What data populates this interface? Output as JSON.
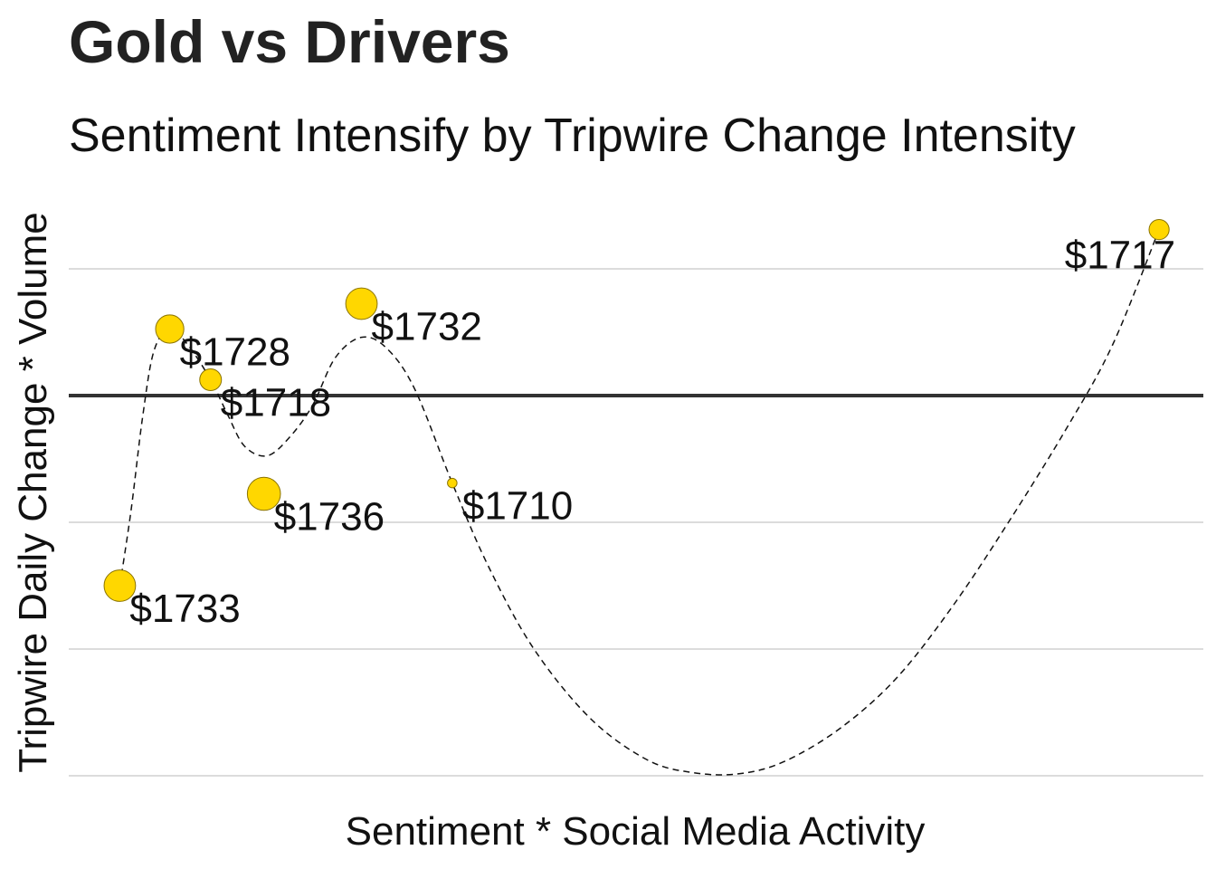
{
  "chart_data": {
    "type": "scatter",
    "title": "Gold vs Drivers",
    "subtitle": "Sentiment Intensify by Tripwire Change Intensity",
    "xlabel": "Sentiment * Social Media Activity",
    "ylabel": "Tripwire Daily Change * Volume",
    "xlim": [
      0,
      100
    ],
    "ylim": [
      0,
      100
    ],
    "grid": true,
    "reference_line_y": 60,
    "smooth_line": "dashed",
    "points": [
      {
        "label": "$1733",
        "x": 4.5,
        "y": 30.0,
        "size": 3.2
      },
      {
        "label": "$1728",
        "x": 8.9,
        "y": 70.5,
        "size": 2.8
      },
      {
        "label": "$1718",
        "x": 12.5,
        "y": 62.5,
        "size": 2.0
      },
      {
        "label": "$1736",
        "x": 17.2,
        "y": 44.5,
        "size": 3.4
      },
      {
        "label": "$1732",
        "x": 25.8,
        "y": 74.5,
        "size": 3.2
      },
      {
        "label": "$1710",
        "x": 33.8,
        "y": 46.2,
        "size": 0.5
      },
      {
        "label": "$1717",
        "x": 96.1,
        "y": 86.2,
        "size": 1.8
      }
    ],
    "smooth_curve": [
      [
        4.5,
        30.0
      ],
      [
        5.5,
        42.0
      ],
      [
        6.5,
        56.5
      ],
      [
        7.5,
        67.0
      ],
      [
        8.9,
        70.5
      ],
      [
        10.5,
        68.0
      ],
      [
        12.5,
        62.5
      ],
      [
        14.0,
        57.0
      ],
      [
        15.5,
        52.0
      ],
      [
        17.5,
        50.5
      ],
      [
        19.5,
        53.5
      ],
      [
        21.5,
        58.5
      ],
      [
        23.5,
        66.0
      ],
      [
        25.8,
        69.2
      ],
      [
        28.0,
        67.5
      ],
      [
        30.5,
        61.0
      ],
      [
        33.8,
        46.2
      ],
      [
        37.0,
        33.0
      ],
      [
        41.0,
        20.0
      ],
      [
        46.0,
        9.0
      ],
      [
        51.0,
        2.5
      ],
      [
        55.0,
        0.5
      ],
      [
        59.0,
        0.3
      ],
      [
        63.0,
        2.2
      ],
      [
        68.0,
        7.5
      ],
      [
        73.0,
        15.5
      ],
      [
        78.0,
        27.0
      ],
      [
        83.0,
        40.5
      ],
      [
        88.0,
        55.0
      ],
      [
        92.0,
        68.0
      ],
      [
        96.1,
        86.2
      ]
    ],
    "colors": {
      "point_fill": "#FFD700",
      "point_stroke": "#8A7300",
      "grid": "#D0D0D0",
      "reference": "#333333",
      "curve": "#111111"
    }
  }
}
